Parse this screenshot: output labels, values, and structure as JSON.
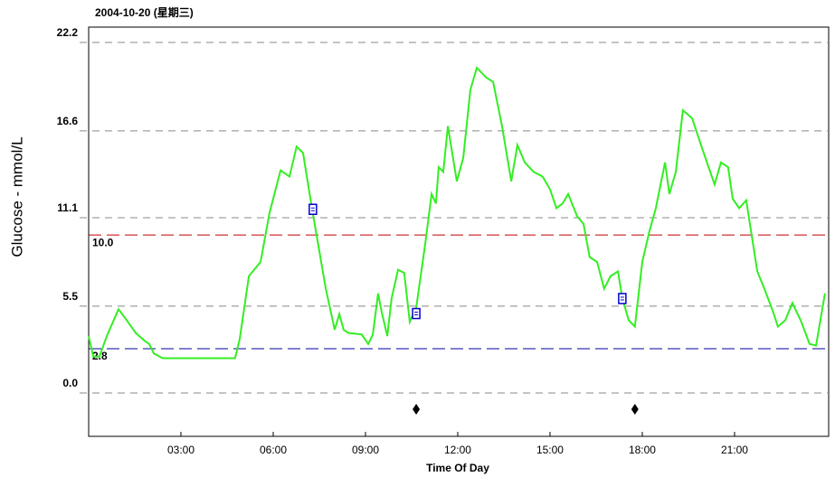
{
  "chart_data": {
    "type": "line",
    "title": "2004-10-20 (星期三)",
    "x_label": "Time Of Day",
    "y_label": "Glucose - mmol/L",
    "xlim": [
      0,
      24.06
    ],
    "ylim": [
      -2.75,
      23.17
    ],
    "xticks": [
      {
        "value": 3,
        "label": "03:00"
      },
      {
        "value": 6,
        "label": "06:00"
      },
      {
        "value": 9,
        "label": "09:00"
      },
      {
        "value": 12,
        "label": "12:00"
      },
      {
        "value": 15,
        "label": "15:00"
      },
      {
        "value": 18,
        "label": "18:00"
      },
      {
        "value": 21,
        "label": "21:00"
      }
    ],
    "yticks": [
      {
        "value": 0,
        "label": "0.0"
      },
      5.5,
      11.1,
      16.6,
      22.2
    ],
    "grid": true,
    "reference_lines": [
      {
        "value": 10.0,
        "label": "10.0",
        "color": "#c00000"
      },
      {
        "value": 2.8,
        "label": "2.8",
        "color": "#0000a0"
      }
    ],
    "series": [
      {
        "name": "Glucose",
        "color": "#33ee22",
        "x": [
          0,
          0.15,
          0.35,
          0.59,
          0.97,
          1.24,
          1.53,
          1.82,
          1.97,
          2.12,
          2.41,
          3.88,
          4.76,
          4.91,
          5.21,
          5.59,
          5.88,
          6.24,
          6.53,
          6.76,
          6.97,
          7.26,
          7.41,
          7.71,
          8.0,
          8.15,
          8.29,
          8.44,
          8.88,
          9.09,
          9.24,
          9.41,
          9.53,
          9.71,
          9.85,
          10.06,
          10.26,
          10.44,
          10.65,
          10.94,
          11.15,
          11.29,
          11.38,
          11.53,
          11.68,
          11.82,
          11.97,
          12.18,
          12.41,
          12.62,
          12.91,
          13.15,
          13.44,
          13.74,
          13.94,
          14.18,
          14.47,
          14.76,
          15.0,
          15.21,
          15.41,
          15.59,
          15.88,
          16.09,
          16.29,
          16.53,
          16.76,
          16.97,
          17.21,
          17.35,
          17.56,
          17.76,
          18.0,
          18.24,
          18.44,
          18.74,
          18.88,
          19.09,
          19.32,
          19.62,
          19.91,
          20.35,
          20.56,
          20.79,
          20.94,
          21.15,
          21.38,
          21.74,
          21.97,
          22.26,
          22.41,
          22.65,
          22.88,
          23.15,
          23.44,
          23.65,
          23.94
        ],
        "values": [
          3.6,
          2.3,
          2.3,
          3.6,
          5.3,
          4.6,
          3.8,
          3.3,
          3.1,
          2.5,
          2.2,
          2.2,
          2.2,
          3.4,
          7.4,
          8.3,
          11.4,
          14.1,
          13.7,
          15.6,
          15.2,
          11.7,
          10.0,
          6.6,
          4.0,
          5.0,
          4.0,
          3.8,
          3.7,
          3.1,
          3.7,
          6.3,
          5.1,
          3.6,
          6.0,
          7.8,
          7.6,
          4.5,
          5.4,
          9.4,
          12.6,
          12.0,
          14.3,
          14.0,
          16.9,
          15.2,
          13.4,
          14.9,
          19.2,
          20.6,
          20.0,
          19.7,
          16.9,
          13.4,
          15.7,
          14.6,
          14.0,
          13.7,
          12.9,
          11.7,
          12.0,
          12.6,
          11.2,
          10.7,
          8.6,
          8.3,
          6.6,
          7.4,
          7.7,
          6.0,
          4.6,
          4.2,
          8.3,
          10.3,
          11.7,
          14.6,
          12.6,
          14.0,
          17.9,
          17.4,
          15.7,
          13.2,
          14.6,
          14.3,
          12.3,
          11.7,
          12.2,
          7.7,
          6.6,
          5.1,
          4.2,
          4.6,
          5.7,
          4.6,
          3.1,
          3.0,
          6.3
        ]
      }
    ],
    "notes": {
      "color": "#0000cc",
      "x": [
        7.29,
        10.65,
        17.35
      ],
      "values": [
        11.6,
        5.0,
        5.95
      ]
    },
    "events": {
      "color": "#000000",
      "x": [
        10.65,
        17.76
      ]
    }
  }
}
